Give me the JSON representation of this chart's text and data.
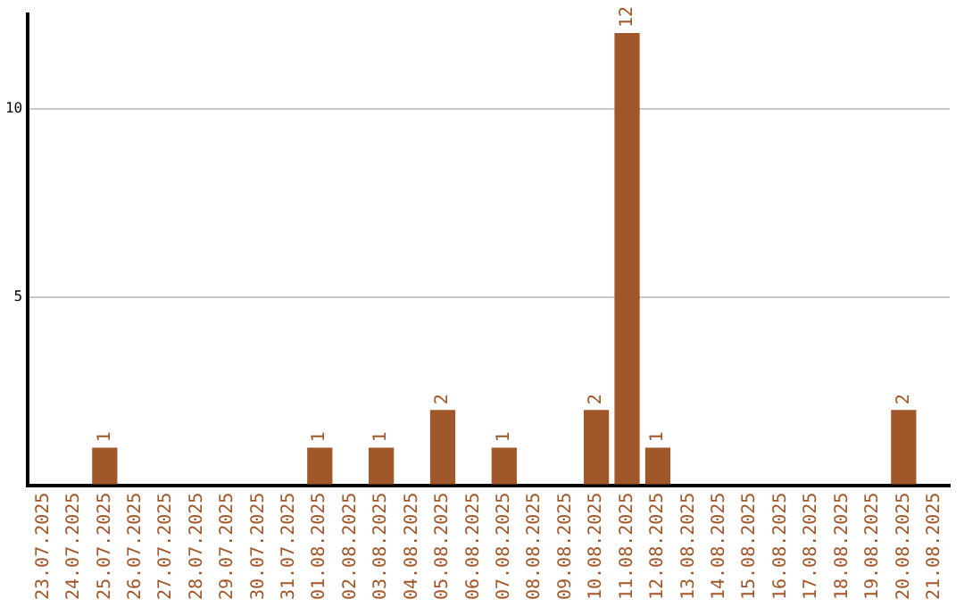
{
  "chart_data": {
    "type": "bar",
    "categories": [
      "23.07.2025",
      "24.07.2025",
      "25.07.2025",
      "26.07.2025",
      "27.07.2025",
      "28.07.2025",
      "29.07.2025",
      "30.07.2025",
      "31.07.2025",
      "01.08.2025",
      "02.08.2025",
      "03.08.2025",
      "04.08.2025",
      "05.08.2025",
      "06.08.2025",
      "07.08.2025",
      "08.08.2025",
      "09.08.2025",
      "10.08.2025",
      "11.08.2025",
      "12.08.2025",
      "13.08.2025",
      "14.08.2025",
      "15.08.2025",
      "16.08.2025",
      "17.08.2025",
      "18.08.2025",
      "19.08.2025",
      "20.08.2025",
      "21.08.2025"
    ],
    "values": [
      0,
      0,
      1,
      0,
      0,
      0,
      0,
      0,
      0,
      1,
      0,
      1,
      0,
      2,
      0,
      1,
      0,
      0,
      2,
      12,
      1,
      0,
      0,
      0,
      0,
      0,
      0,
      0,
      2,
      0
    ],
    "value_labels": [
      null,
      null,
      "1",
      null,
      null,
      null,
      null,
      null,
      null,
      "1",
      null,
      "1",
      null,
      "2",
      null,
      "1",
      null,
      null,
      "2",
      "12",
      "1",
      null,
      null,
      null,
      null,
      null,
      null,
      null,
      "2",
      null
    ],
    "color": "#a0572a",
    "ylim": [
      0,
      12.5
    ],
    "yticks": [
      {
        "value": 0,
        "label": null
      },
      5,
      10
    ],
    "grid": "y",
    "legend": false
  }
}
